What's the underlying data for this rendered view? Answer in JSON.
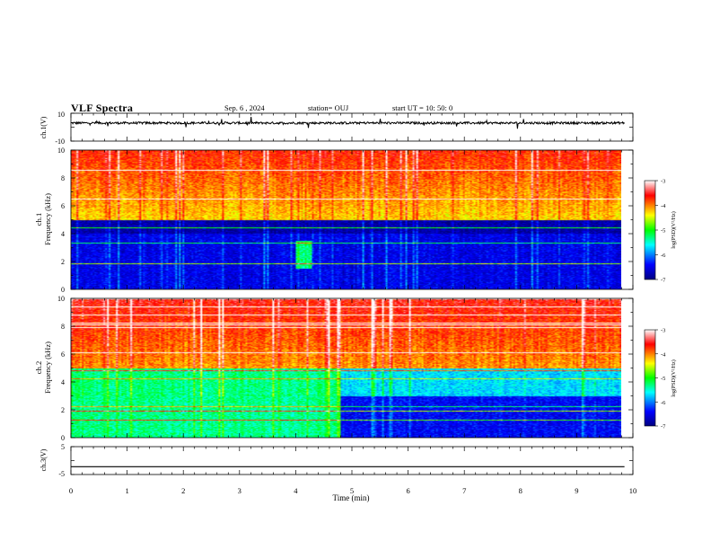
{
  "header": {
    "title": "VLF Spectra",
    "date": "Sep. 6 , 2024",
    "station": "station= OUJ",
    "start": "start  UT =   10: 50: 0"
  },
  "chart_data": [
    {
      "type": "line",
      "panel": "ch1_waveform",
      "ylabel": "ch.1(V)",
      "ylim": [
        -10,
        10
      ],
      "yticks": [
        "10",
        "-10"
      ],
      "xlim": [
        0,
        10
      ],
      "series": [
        {
          "values_summary": "noisy trace near +3 V with sparse spikes",
          "level": 3
        }
      ]
    },
    {
      "type": "heatmap",
      "panel": "ch1_spectrogram",
      "ylabel": "ch.1 Frequency (kHz)",
      "ylim": [
        0,
        10
      ],
      "yticks": [
        "0",
        "2",
        "4",
        "6",
        "8",
        "10"
      ],
      "xlim": [
        0,
        9.85
      ],
      "colorbar": {
        "label": "log(PSD)(V²/Hz)",
        "ticks": [
          "-3",
          "-4",
          "-5",
          "-6",
          "-7"
        ],
        "range": [
          -7,
          -3
        ]
      },
      "features": {
        "low_band_kHz": [
          0,
          5
        ],
        "low_band_level": -6.6,
        "high_band_kHz": [
          5,
          10
        ],
        "high_band_level": -4.4
      }
    },
    {
      "type": "heatmap",
      "panel": "ch2_spectrogram",
      "ylabel": "ch.2 Frequency (kHz)",
      "ylim": [
        0,
        10
      ],
      "yticks": [
        "0",
        "2",
        "4",
        "6",
        "8",
        "10"
      ],
      "xlim": [
        0,
        9.85
      ],
      "colorbar": {
        "label": "log(PSD)(V²/Hz)",
        "ticks": [
          "-3",
          "-4",
          "-5",
          "-6",
          "-7"
        ],
        "range": [
          -7,
          -3
        ]
      },
      "features": {
        "transition_min": 4.8,
        "before_level_low": -5.4,
        "after_level_low": -6.5,
        "high_band_level": -4.2
      }
    },
    {
      "type": "line",
      "panel": "ch3_waveform",
      "ylabel": "ch.3(V)",
      "ylim": [
        -5,
        5
      ],
      "yticks": [
        "5",
        "-5"
      ],
      "xlim": [
        0,
        10
      ],
      "xlabel": "Time  (min)",
      "xticks": [
        "0",
        "1",
        "2",
        "3",
        "4",
        "5",
        "6",
        "7",
        "8",
        "9",
        "10"
      ],
      "series": [
        {
          "values_summary": "flat line",
          "level": -2.2
        }
      ]
    }
  ],
  "colors": {
    "axis": "#000000",
    "background": "#ffffff"
  },
  "ui": {
    "ch1_ylabel": "ch.1(V)",
    "ch1_ymax": "10",
    "ch1_ymin": "-10",
    "ch3_ylabel": "ch.3(V)",
    "ch3_ymax": "5",
    "ch3_ymin": "-5",
    "spec1_ylabel": "ch.1",
    "spec2_ylabel": "ch.2",
    "freq_label": "Frequency  (kHz)",
    "xlabel": "Time  (min)",
    "cbar_label": "log(PSD)(V²/Hz)"
  }
}
